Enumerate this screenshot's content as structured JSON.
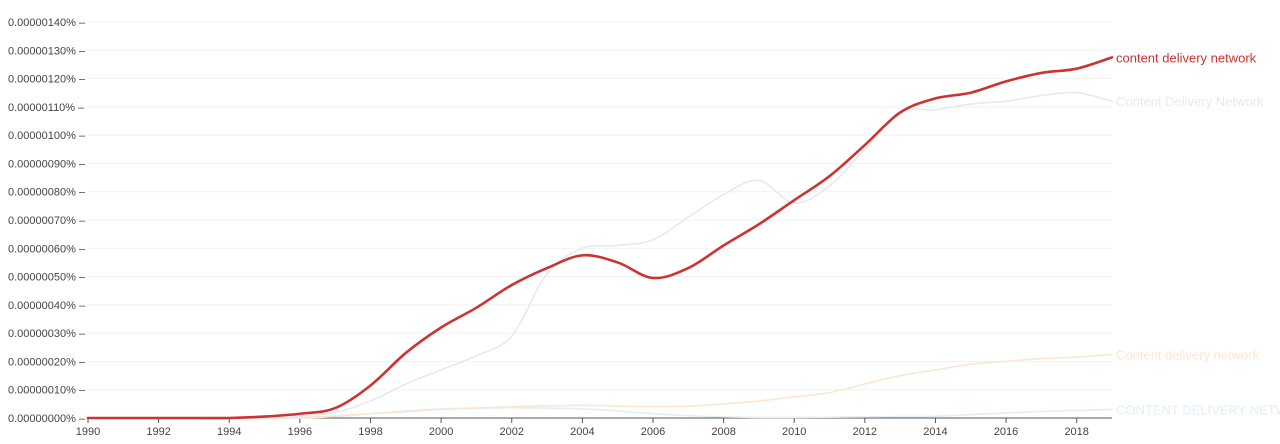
{
  "chart_data": {
    "type": "line",
    "title": "",
    "xlabel": "",
    "ylabel": "",
    "xlim": [
      1990,
      2019
    ],
    "ylim": [
      0,
      1.4e-06
    ],
    "grid": true,
    "legend": "labels at line ends (right)",
    "x_ticks": [
      "1990",
      "1992",
      "1994",
      "1996",
      "1998",
      "2000",
      "2002",
      "2004",
      "2006",
      "2008",
      "2010",
      "2012",
      "2014",
      "2016",
      "2018"
    ],
    "y_ticks": [
      "0.00000000%",
      "0.00000010%",
      "0.00000020%",
      "0.00000030%",
      "0.00000040%",
      "0.00000050%",
      "0.00000060%",
      "0.00000070%",
      "0.00000080%",
      "0.00000090%",
      "0.00000100%",
      "0.00000110%",
      "0.00000120%",
      "0.00000130%",
      "0.00000140%"
    ],
    "x": [
      1990,
      1991,
      1992,
      1993,
      1994,
      1995,
      1996,
      1997,
      1998,
      1999,
      2000,
      2001,
      2002,
      2003,
      2004,
      2005,
      2006,
      2007,
      2008,
      2009,
      2010,
      2011,
      2012,
      2013,
      2014,
      2015,
      2016,
      2017,
      2018,
      2019
    ],
    "series": [
      {
        "name": "content delivery network",
        "color": "#cc3333",
        "values": [
          0,
          0,
          0,
          0,
          0,
          5e-09,
          1.5e-08,
          3.5e-08,
          1.15e-07,
          2.3e-07,
          3.2e-07,
          3.9e-07,
          4.7e-07,
          5.3e-07,
          5.75e-07,
          5.5e-07,
          4.95e-07,
          5.3e-07,
          6.1e-07,
          6.85e-07,
          7.7e-07,
          8.55e-07,
          9.65e-07,
          1.08e-06,
          1.13e-06,
          1.15e-06,
          1.19e-06,
          1.22e-06,
          1.235e-06,
          1.275e-06
        ]
      },
      {
        "name": "Content Delivery Network",
        "color": "#e4eaf0",
        "values": [
          0,
          0,
          0,
          0,
          0,
          2e-09,
          8e-09,
          2e-08,
          6e-08,
          1.2e-07,
          1.7e-07,
          2.2e-07,
          2.9e-07,
          5.1e-07,
          6e-07,
          6.1e-07,
          6.3e-07,
          7.1e-07,
          7.9e-07,
          8.4e-07,
          7.6e-07,
          8.2e-07,
          9.5e-07,
          1.08e-06,
          1.09e-06,
          1.11e-06,
          1.12e-06,
          1.14e-06,
          1.15e-06,
          1.12e-06
        ]
      },
      {
        "name": "Content delivery network",
        "color": "#fce6d0",
        "values": [
          0,
          0,
          0,
          0,
          0,
          0,
          2e-09,
          8e-09,
          1.5e-08,
          2.2e-08,
          3e-08,
          3.5e-08,
          4e-08,
          4.3e-08,
          4.5e-08,
          4.2e-08,
          4e-08,
          4.2e-08,
          5e-08,
          6e-08,
          7.5e-08,
          9e-08,
          1.2e-07,
          1.5e-07,
          1.7e-07,
          1.9e-07,
          2e-07,
          2.1e-07,
          2.15e-07,
          2.25e-07
        ]
      },
      {
        "name": "CONTENT DELIVERY NETWORK",
        "color": "#e2eef8",
        "values": [
          0,
          0,
          0,
          0,
          0,
          0,
          0,
          5e-09,
          1.5e-08,
          2.5e-08,
          3.2e-08,
          3.5e-08,
          3.6e-08,
          3.5e-08,
          3.2e-08,
          2.5e-08,
          1.5e-08,
          8e-09,
          4e-09,
          2e-09,
          2e-09,
          3e-09,
          4e-09,
          5e-09,
          6e-09,
          1.2e-08,
          1.8e-08,
          2.3e-08,
          2.7e-08,
          3e-08
        ]
      }
    ]
  }
}
